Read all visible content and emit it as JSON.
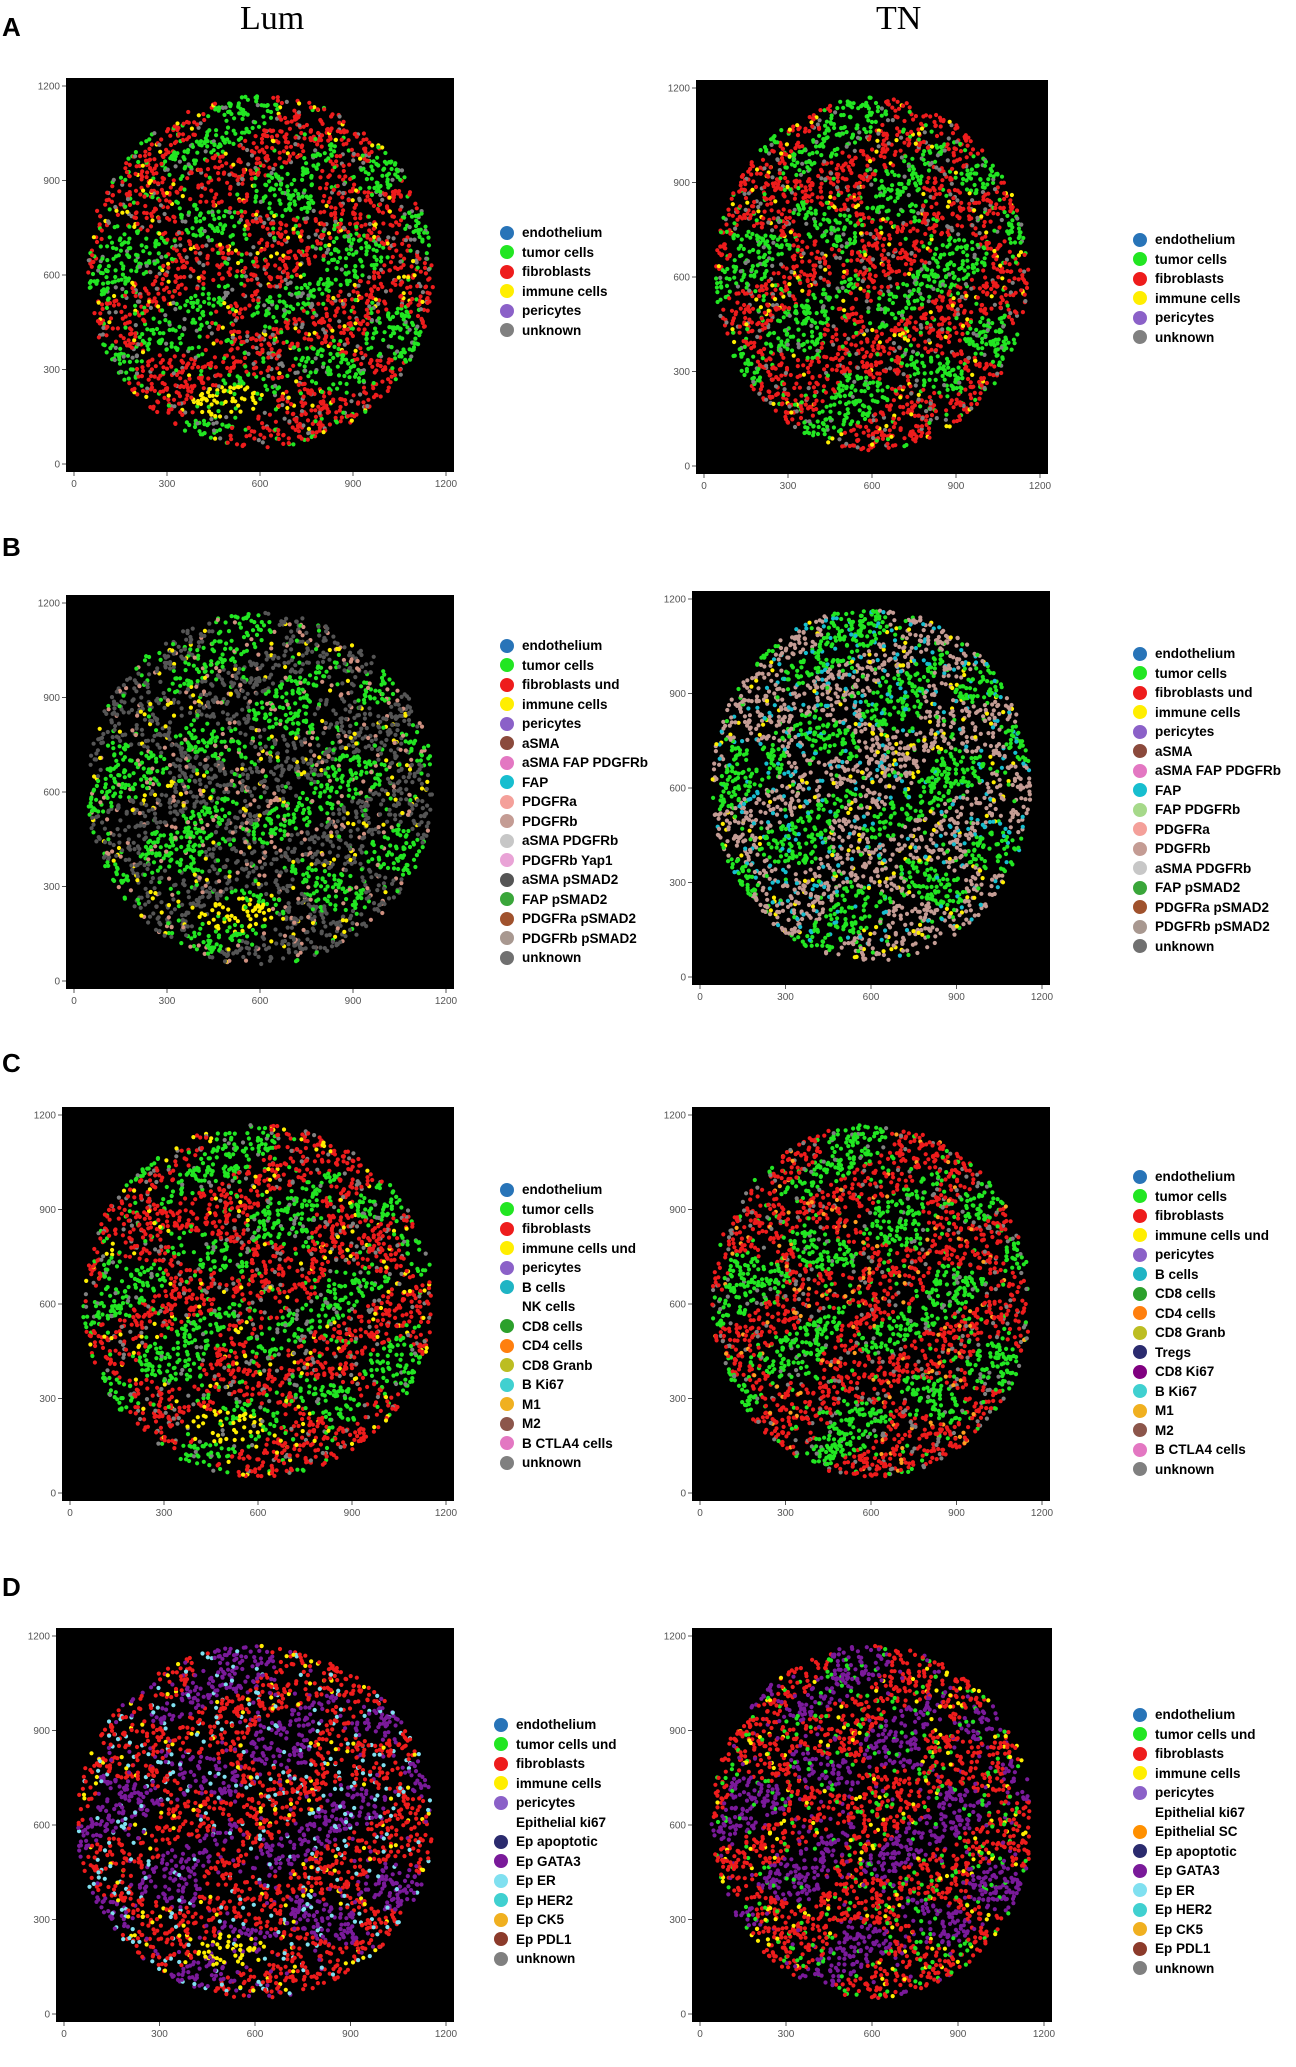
{
  "column_titles": [
    "Lum",
    "TN"
  ],
  "row_labels": [
    "A",
    "B",
    "C",
    "D"
  ],
  "colors": {
    "endothelium": "#2874b8",
    "tumor cells": "#22e622",
    "fibroblasts": "#ee1c1c",
    "immune cells": "#ffee00",
    "pericytes": "#8b61c8",
    "unknown": "#808080"
  },
  "chart_data": [
    {
      "id": "A-Lum",
      "type": "scatter",
      "xlim": [
        0,
        1200
      ],
      "ylim": [
        0,
        1200
      ],
      "xticks": [
        0,
        300,
        600,
        900,
        1200
      ],
      "yticks": [
        0,
        300,
        600,
        900,
        1200
      ],
      "mix": {
        "tumor": "#22e622",
        "stroma": "#ee1c1c",
        "immune": "#ffee00",
        "other": "#808080"
      },
      "immune_hotspot": [
        500,
        200
      ],
      "legend": [
        {
          "label": "endothelium",
          "color": "#2874b8"
        },
        {
          "label": "tumor cells",
          "color": "#22e622"
        },
        {
          "label": "fibroblasts",
          "color": "#ee1c1c"
        },
        {
          "label": "immune cells",
          "color": "#ffee00"
        },
        {
          "label": "pericytes",
          "color": "#8b61c8"
        },
        {
          "label": "unknown",
          "color": "#808080"
        }
      ]
    },
    {
      "id": "A-TN",
      "type": "scatter",
      "xlim": [
        0,
        1200
      ],
      "ylim": [
        0,
        1200
      ],
      "xticks": [
        0,
        300,
        600,
        900,
        1200
      ],
      "yticks": [
        0,
        300,
        600,
        900,
        1200
      ],
      "mix": {
        "tumor": "#22e622",
        "stroma": "#ee1c1c",
        "immune": "#ffee00",
        "other": "#808080"
      },
      "immune_hotspot": null,
      "legend": [
        {
          "label": "endothelium",
          "color": "#2874b8"
        },
        {
          "label": "tumor cells",
          "color": "#22e622"
        },
        {
          "label": "fibroblasts",
          "color": "#ee1c1c"
        },
        {
          "label": "immune cells",
          "color": "#ffee00"
        },
        {
          "label": "pericytes",
          "color": "#8b61c8"
        },
        {
          "label": "unknown",
          "color": "#808080"
        }
      ]
    },
    {
      "id": "B-Lum",
      "type": "scatter",
      "xlim": [
        0,
        1200
      ],
      "ylim": [
        0,
        1200
      ],
      "xticks": [
        0,
        300,
        600,
        900,
        1200
      ],
      "yticks": [
        0,
        300,
        600,
        900,
        1200
      ],
      "mix": {
        "tumor": "#22e622",
        "stroma": "#555555",
        "immune": "#ffee00",
        "other": "#d09080"
      },
      "immune_hotspot": [
        520,
        210
      ],
      "legend": [
        {
          "label": "endothelium",
          "color": "#2874b8"
        },
        {
          "label": "tumor cells",
          "color": "#22e622"
        },
        {
          "label": "fibroblasts und",
          "color": "#ee1c1c"
        },
        {
          "label": "immune cells",
          "color": "#ffee00"
        },
        {
          "label": "pericytes",
          "color": "#8b61c8"
        },
        {
          "label": "aSMA",
          "color": "#8b4a3c"
        },
        {
          "label": "aSMA FAP PDGFRb",
          "color": "#e377c2"
        },
        {
          "label": "FAP",
          "color": "#17becf"
        },
        {
          "label": "PDGFRa",
          "color": "#f4a09a"
        },
        {
          "label": "PDGFRb",
          "color": "#c49c94"
        },
        {
          "label": "aSMA  PDGFRb",
          "color": "#c7c7c7"
        },
        {
          "label": "PDGFRb Yap1",
          "color": "#e9a3d6"
        },
        {
          "label": "aSMA pSMAD2",
          "color": "#555555"
        },
        {
          "label": "FAP pSMAD2",
          "color": "#3aa63a"
        },
        {
          "label": "PDGFRa pSMAD2",
          "color": "#a0522d"
        },
        {
          "label": "PDGFRb pSMAD2",
          "color": "#a89890"
        },
        {
          "label": "unknown",
          "color": "#707070"
        }
      ]
    },
    {
      "id": "B-TN",
      "type": "scatter",
      "xlim": [
        0,
        1200
      ],
      "ylim": [
        0,
        1200
      ],
      "xticks": [
        0,
        300,
        600,
        900,
        1200
      ],
      "yticks": [
        0,
        300,
        600,
        900,
        1200
      ],
      "mix": {
        "tumor": "#22e622",
        "stroma": "#c49c94",
        "immune": "#ffee00",
        "other": "#17becf"
      },
      "immune_hotspot": null,
      "legend": [
        {
          "label": "endothelium",
          "color": "#2874b8"
        },
        {
          "label": "tumor cells",
          "color": "#22e622"
        },
        {
          "label": "fibroblasts und",
          "color": "#ee1c1c"
        },
        {
          "label": "immune cells",
          "color": "#ffee00"
        },
        {
          "label": "pericytes",
          "color": "#8b61c8"
        },
        {
          "label": "aSMA",
          "color": "#8b4a3c"
        },
        {
          "label": "aSMA FAP PDGFRb",
          "color": "#e377c2"
        },
        {
          "label": "FAP",
          "color": "#17becf"
        },
        {
          "label": "FAP PDGFRb",
          "color": "#a6d98a"
        },
        {
          "label": "PDGFRa",
          "color": "#f4a09a"
        },
        {
          "label": "PDGFRb",
          "color": "#c49c94"
        },
        {
          "label": "aSMA  PDGFRb",
          "color": "#c7c7c7"
        },
        {
          "label": "FAP pSMAD2",
          "color": "#3aa63a"
        },
        {
          "label": "PDGFRa pSMAD2",
          "color": "#a0522d"
        },
        {
          "label": "PDGFRb pSMAD2",
          "color": "#a89890"
        },
        {
          "label": "unknown",
          "color": "#707070"
        }
      ]
    },
    {
      "id": "C-Lum",
      "type": "scatter",
      "xlim": [
        0,
        1200
      ],
      "ylim": [
        0,
        1200
      ],
      "xticks": [
        0,
        300,
        600,
        900,
        1200
      ],
      "yticks": [
        0,
        300,
        600,
        900,
        1200
      ],
      "mix": {
        "tumor": "#22e622",
        "stroma": "#ee1c1c",
        "immune": "#ffee00",
        "other": "#808080"
      },
      "immune_hotspot": [
        500,
        210
      ],
      "legend": [
        {
          "label": "endothelium",
          "color": "#2874b8"
        },
        {
          "label": "tumor cells",
          "color": "#22e622"
        },
        {
          "label": "fibroblasts",
          "color": "#ee1c1c"
        },
        {
          "label": "immune cells und",
          "color": "#ffee00"
        },
        {
          "label": "pericytes",
          "color": "#8b61c8"
        },
        {
          "label": "B cells",
          "color": "#1fb4c4"
        },
        {
          "label": "NK cells",
          "color": "#ffffff"
        },
        {
          "label": "CD8 cells",
          "color": "#2ca02c"
        },
        {
          "label": "CD4 cells",
          "color": "#ff7f0e"
        },
        {
          "label": "CD8 Granb",
          "color": "#bcbd22"
        },
        {
          "label": "B Ki67",
          "color": "#40d0d0"
        },
        {
          "label": "M1",
          "color": "#f0b020"
        },
        {
          "label": "M2",
          "color": "#8c564b"
        },
        {
          "label": "B CTLA4 cells",
          "color": "#e377c2"
        },
        {
          "label": "unknown",
          "color": "#808080"
        }
      ]
    },
    {
      "id": "C-TN",
      "type": "scatter",
      "xlim": [
        0,
        1200
      ],
      "ylim": [
        0,
        1200
      ],
      "xticks": [
        0,
        300,
        600,
        900,
        1200
      ],
      "yticks": [
        0,
        300,
        600,
        900,
        1200
      ],
      "mix": {
        "tumor": "#22e622",
        "stroma": "#ee1c1c",
        "immune": "#ff9f20",
        "other": "#808080"
      },
      "immune_hotspot": null,
      "legend": [
        {
          "label": "endothelium",
          "color": "#2874b8"
        },
        {
          "label": "tumor cells",
          "color": "#22e622"
        },
        {
          "label": "fibroblasts",
          "color": "#ee1c1c"
        },
        {
          "label": "immune cells und",
          "color": "#ffee00"
        },
        {
          "label": "pericytes",
          "color": "#8b61c8"
        },
        {
          "label": "B cells",
          "color": "#1fb4c4"
        },
        {
          "label": "CD8 cells",
          "color": "#2ca02c"
        },
        {
          "label": "CD4 cells",
          "color": "#ff7f0e"
        },
        {
          "label": "CD8 Granb",
          "color": "#bcbd22"
        },
        {
          "label": "Tregs",
          "color": "#2b2b6e"
        },
        {
          "label": "CD8 Ki67",
          "color": "#800080"
        },
        {
          "label": "B Ki67",
          "color": "#40d0d0"
        },
        {
          "label": "M1",
          "color": "#f0b020"
        },
        {
          "label": "M2",
          "color": "#8c564b"
        },
        {
          "label": "B CTLA4 cells",
          "color": "#e377c2"
        },
        {
          "label": "unknown",
          "color": "#808080"
        }
      ]
    },
    {
      "id": "D-Lum",
      "type": "scatter",
      "xlim": [
        0,
        1200
      ],
      "ylim": [
        0,
        1200
      ],
      "xticks": [
        0,
        300,
        600,
        900,
        1200
      ],
      "yticks": [
        0,
        300,
        600,
        900,
        1200
      ],
      "mix": {
        "tumor": "#7a1a9a",
        "stroma": "#ee1c1c",
        "immune": "#ffee00",
        "other": "#80e0f0"
      },
      "immune_hotspot": [
        520,
        200
      ],
      "legend": [
        {
          "label": "endothelium",
          "color": "#2874b8"
        },
        {
          "label": "tumor cells und",
          "color": "#22e622"
        },
        {
          "label": "fibroblasts",
          "color": "#ee1c1c"
        },
        {
          "label": "immune cells",
          "color": "#ffee00"
        },
        {
          "label": "pericytes",
          "color": "#8b61c8"
        },
        {
          "label": "Epithelial ki67",
          "color": "#ffffff"
        },
        {
          "label": "Ep apoptotic",
          "color": "#2b2b6e"
        },
        {
          "label": "Ep GATA3",
          "color": "#7a1a9a"
        },
        {
          "label": "Ep ER",
          "color": "#80e0f0"
        },
        {
          "label": "Ep HER2",
          "color": "#40d0d0"
        },
        {
          "label": "Ep CK5",
          "color": "#f0b020"
        },
        {
          "label": "Ep PDL1",
          "color": "#8c3b2b"
        },
        {
          "label": "unknown",
          "color": "#808080"
        }
      ]
    },
    {
      "id": "D-TN",
      "type": "scatter",
      "xlim": [
        0,
        1200
      ],
      "ylim": [
        0,
        1200
      ],
      "xticks": [
        0,
        300,
        600,
        900,
        1200
      ],
      "yticks": [
        0,
        300,
        600,
        900,
        1200
      ],
      "mix": {
        "tumor": "#7a1a9a",
        "stroma": "#ee1c1c",
        "immune": "#ffee00",
        "other": "#22e622"
      },
      "immune_hotspot": null,
      "legend": [
        {
          "label": "endothelium",
          "color": "#2874b8"
        },
        {
          "label": "tumor cells und",
          "color": "#22e622"
        },
        {
          "label": "fibroblasts",
          "color": "#ee1c1c"
        },
        {
          "label": "immune cells",
          "color": "#ffee00"
        },
        {
          "label": "pericytes",
          "color": "#8b61c8"
        },
        {
          "label": "Epithelial ki67",
          "color": "#ffffff"
        },
        {
          "label": "Epithelial SC",
          "color": "#ff9000"
        },
        {
          "label": "Ep apoptotic",
          "color": "#2b2b6e"
        },
        {
          "label": "Ep GATA3",
          "color": "#7a1a9a"
        },
        {
          "label": "Ep ER",
          "color": "#80e0f0"
        },
        {
          "label": "Ep HER2",
          "color": "#40d0d0"
        },
        {
          "label": "Ep CK5",
          "color": "#f0b020"
        },
        {
          "label": "Ep PDL1",
          "color": "#8c3b2b"
        },
        {
          "label": "unknown",
          "color": "#808080"
        }
      ]
    }
  ]
}
